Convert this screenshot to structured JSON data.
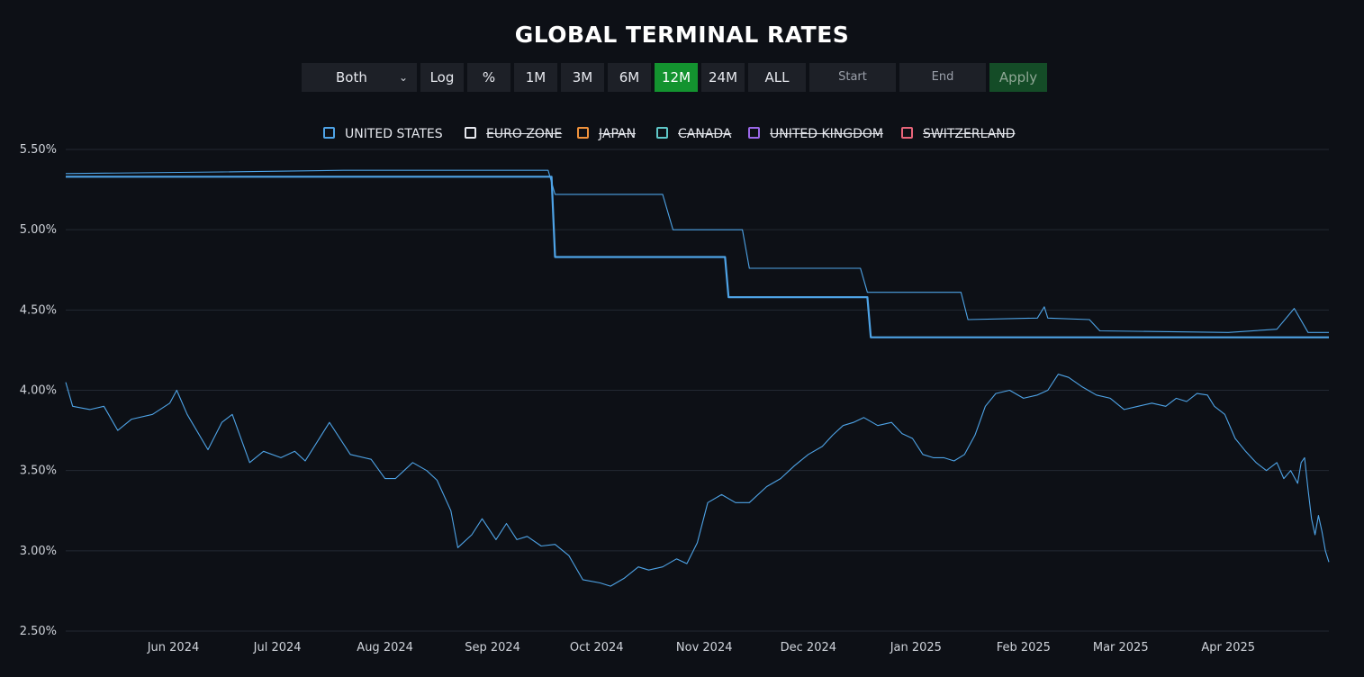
{
  "page": {
    "title": "GLOBAL TERMINAL RATES"
  },
  "toolbar": {
    "mode_select": "Both",
    "log_button": "Log",
    "percent_button": "%",
    "ranges": [
      "1M",
      "3M",
      "6M",
      "12M",
      "24M",
      "ALL"
    ],
    "active_range": "12M",
    "start_placeholder": "Start",
    "end_placeholder": "End",
    "apply_button": "Apply",
    "colors": {
      "active": "#13932f",
      "apply": "#144c27",
      "button": "#1d2027"
    }
  },
  "legend": [
    {
      "label": "UNITED STATES",
      "color": "#4ea3e6",
      "enabled": true
    },
    {
      "label": "EURO ZONE",
      "color": "#e6e8ee",
      "enabled": false
    },
    {
      "label": "JAPAN",
      "color": "#f0923c",
      "enabled": false
    },
    {
      "label": "CANADA",
      "color": "#5fc7c8",
      "enabled": false
    },
    {
      "label": "UNITED KINGDOM",
      "color": "#9a68e8",
      "enabled": false
    },
    {
      "label": "SWITZERLAND",
      "color": "#e8657a",
      "enabled": false
    }
  ],
  "chart_data": {
    "type": "line",
    "title": "GLOBAL TERMINAL RATES",
    "xlabel": "",
    "ylabel": "",
    "y_unit": "%",
    "ylim": [
      2.5,
      5.5
    ],
    "y_ticks": [
      "5.50%",
      "5.00%",
      "4.50%",
      "4.00%",
      "3.50%",
      "3.00%",
      "2.50%"
    ],
    "x_range": [
      "2024-05-01",
      "2025-04-30"
    ],
    "x_ticks": [
      {
        "date": "2024-06-01",
        "label": "Jun 2024"
      },
      {
        "date": "2024-07-01",
        "label": "Jul 2024"
      },
      {
        "date": "2024-08-01",
        "label": "Aug 2024"
      },
      {
        "date": "2024-09-01",
        "label": "Sep 2024"
      },
      {
        "date": "2024-10-01",
        "label": "Oct 2024"
      },
      {
        "date": "2024-11-01",
        "label": "Nov 2024"
      },
      {
        "date": "2024-12-01",
        "label": "Dec 2024"
      },
      {
        "date": "2025-01-01",
        "label": "Jan 2025"
      },
      {
        "date": "2025-02-01",
        "label": "Feb 2025"
      },
      {
        "date": "2025-03-01",
        "label": "Mar 2025"
      },
      {
        "date": "2025-04-01",
        "label": "Apr 2025"
      }
    ],
    "grid": true,
    "legend_position": "top",
    "series": [
      {
        "name": "UNITED STATES",
        "color": "#4ea3e6",
        "style": "thick",
        "points": [
          [
            "2024-05-01",
            5.33
          ],
          [
            "2024-09-18",
            5.33
          ],
          [
            "2024-09-19",
            4.83
          ],
          [
            "2024-11-07",
            4.83
          ],
          [
            "2024-11-08",
            4.58
          ],
          [
            "2024-12-18",
            4.58
          ],
          [
            "2024-12-19",
            4.33
          ],
          [
            "2025-04-30",
            4.33
          ]
        ]
      },
      {
        "color": "#4ea3e6",
        "style": "thin",
        "points": [
          [
            "2024-05-01",
            5.35
          ],
          [
            "2024-06-15",
            5.36
          ],
          [
            "2024-07-20",
            5.37
          ],
          [
            "2024-09-17",
            5.37
          ],
          [
            "2024-09-19",
            5.22
          ],
          [
            "2024-10-20",
            5.22
          ],
          [
            "2024-10-23",
            5.0
          ],
          [
            "2024-11-12",
            5.0
          ],
          [
            "2024-11-14",
            4.76
          ],
          [
            "2024-12-16",
            4.76
          ],
          [
            "2024-12-18",
            4.61
          ],
          [
            "2025-01-14",
            4.61
          ],
          [
            "2025-01-16",
            4.44
          ],
          [
            "2025-02-05",
            4.45
          ],
          [
            "2025-02-07",
            4.52
          ],
          [
            "2025-02-08",
            4.45
          ],
          [
            "2025-02-20",
            4.44
          ],
          [
            "2025-02-23",
            4.37
          ],
          [
            "2025-04-01",
            4.36
          ],
          [
            "2025-04-15",
            4.38
          ],
          [
            "2025-04-20",
            4.51
          ],
          [
            "2025-04-24",
            4.36
          ],
          [
            "2025-04-30",
            4.36
          ]
        ]
      },
      {
        "color": "#4ea3e6",
        "style": "thin",
        "points": [
          [
            "2024-05-01",
            4.05
          ],
          [
            "2024-05-03",
            3.9
          ],
          [
            "2024-05-08",
            3.88
          ],
          [
            "2024-05-12",
            3.9
          ],
          [
            "2024-05-16",
            3.75
          ],
          [
            "2024-05-20",
            3.82
          ],
          [
            "2024-05-26",
            3.85
          ],
          [
            "2024-05-31",
            3.92
          ],
          [
            "2024-06-02",
            4.0
          ],
          [
            "2024-06-05",
            3.85
          ],
          [
            "2024-06-11",
            3.63
          ],
          [
            "2024-06-15",
            3.8
          ],
          [
            "2024-06-18",
            3.85
          ],
          [
            "2024-06-23",
            3.55
          ],
          [
            "2024-06-27",
            3.62
          ],
          [
            "2024-07-02",
            3.58
          ],
          [
            "2024-07-06",
            3.62
          ],
          [
            "2024-07-09",
            3.56
          ],
          [
            "2024-07-16",
            3.8
          ],
          [
            "2024-07-22",
            3.6
          ],
          [
            "2024-07-28",
            3.57
          ],
          [
            "2024-08-01",
            3.45
          ],
          [
            "2024-08-04",
            3.45
          ],
          [
            "2024-08-09",
            3.55
          ],
          [
            "2024-08-13",
            3.5
          ],
          [
            "2024-08-16",
            3.44
          ],
          [
            "2024-08-20",
            3.25
          ],
          [
            "2024-08-22",
            3.02
          ],
          [
            "2024-08-26",
            3.1
          ],
          [
            "2024-08-29",
            3.2
          ],
          [
            "2024-09-02",
            3.07
          ],
          [
            "2024-09-05",
            3.17
          ],
          [
            "2024-09-08",
            3.07
          ],
          [
            "2024-09-11",
            3.09
          ],
          [
            "2024-09-15",
            3.03
          ],
          [
            "2024-09-19",
            3.04
          ],
          [
            "2024-09-23",
            2.97
          ],
          [
            "2024-09-27",
            2.82
          ],
          [
            "2024-10-02",
            2.8
          ],
          [
            "2024-10-05",
            2.78
          ],
          [
            "2024-10-09",
            2.83
          ],
          [
            "2024-10-13",
            2.9
          ],
          [
            "2024-10-16",
            2.88
          ],
          [
            "2024-10-20",
            2.9
          ],
          [
            "2024-10-24",
            2.95
          ],
          [
            "2024-10-27",
            2.92
          ],
          [
            "2024-10-30",
            3.05
          ],
          [
            "2024-11-02",
            3.3
          ],
          [
            "2024-11-06",
            3.35
          ],
          [
            "2024-11-10",
            3.3
          ],
          [
            "2024-11-14",
            3.3
          ],
          [
            "2024-11-19",
            3.4
          ],
          [
            "2024-11-23",
            3.45
          ],
          [
            "2024-11-27",
            3.53
          ],
          [
            "2024-12-01",
            3.6
          ],
          [
            "2024-12-05",
            3.65
          ],
          [
            "2024-12-08",
            3.72
          ],
          [
            "2024-12-11",
            3.78
          ],
          [
            "2024-12-14",
            3.8
          ],
          [
            "2024-12-17",
            3.83
          ],
          [
            "2024-12-21",
            3.78
          ],
          [
            "2024-12-25",
            3.8
          ],
          [
            "2024-12-28",
            3.73
          ],
          [
            "2024-12-31",
            3.7
          ],
          [
            "2025-01-03",
            3.6
          ],
          [
            "2025-01-06",
            3.58
          ],
          [
            "2025-01-09",
            3.58
          ],
          [
            "2025-01-12",
            3.56
          ],
          [
            "2025-01-15",
            3.6
          ],
          [
            "2025-01-18",
            3.72
          ],
          [
            "2025-01-21",
            3.9
          ],
          [
            "2025-01-24",
            3.98
          ],
          [
            "2025-01-28",
            4.0
          ],
          [
            "2025-02-01",
            3.95
          ],
          [
            "2025-02-05",
            3.97
          ],
          [
            "2025-02-08",
            4.0
          ],
          [
            "2025-02-11",
            4.1
          ],
          [
            "2025-02-14",
            4.08
          ],
          [
            "2025-02-18",
            4.02
          ],
          [
            "2025-02-22",
            3.97
          ],
          [
            "2025-02-26",
            3.95
          ],
          [
            "2025-03-02",
            3.88
          ],
          [
            "2025-03-06",
            3.9
          ],
          [
            "2025-03-10",
            3.92
          ],
          [
            "2025-03-14",
            3.9
          ],
          [
            "2025-03-17",
            3.95
          ],
          [
            "2025-03-20",
            3.93
          ],
          [
            "2025-03-23",
            3.98
          ],
          [
            "2025-03-26",
            3.97
          ],
          [
            "2025-03-28",
            3.9
          ],
          [
            "2025-03-31",
            3.85
          ],
          [
            "2025-04-03",
            3.7
          ],
          [
            "2025-04-06",
            3.62
          ],
          [
            "2025-04-09",
            3.55
          ],
          [
            "2025-04-12",
            3.5
          ],
          [
            "2025-04-15",
            3.55
          ],
          [
            "2025-04-17",
            3.45
          ],
          [
            "2025-04-19",
            3.5
          ],
          [
            "2025-04-21",
            3.42
          ],
          [
            "2025-04-22",
            3.55
          ],
          [
            "2025-04-23",
            3.58
          ],
          [
            "2025-04-24",
            3.38
          ],
          [
            "2025-04-25",
            3.2
          ],
          [
            "2025-04-26",
            3.1
          ],
          [
            "2025-04-27",
            3.22
          ],
          [
            "2025-04-28",
            3.12
          ],
          [
            "2025-04-29",
            3.0
          ],
          [
            "2025-04-30",
            2.93
          ]
        ]
      }
    ]
  }
}
